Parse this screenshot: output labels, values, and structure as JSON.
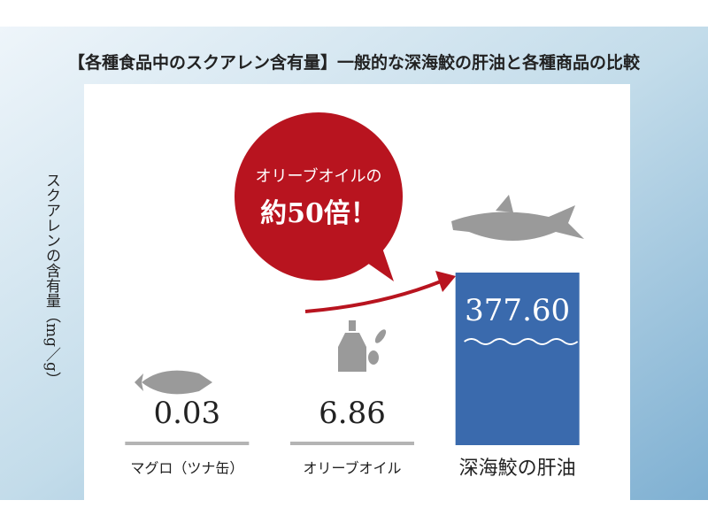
{
  "chart_data": {
    "type": "bar",
    "title": "【各種食品中のスクアレン含有量】一般的な深海鮫の肝油と各種商品の比較",
    "ylabel": "スクアレンの含有量（mg／g）",
    "categories": [
      "マグロ（ツナ缶）",
      "オリーブオイル",
      "深海鮫の肝油"
    ],
    "values": [
      0.03,
      6.86,
      377.6
    ],
    "value_labels": [
      "0.03",
      "6.86",
      "377.60"
    ],
    "colors": [
      "#b4b4b4",
      "#b4b4b4",
      "#3a6aad"
    ],
    "annotations": [
      "オリーブオイルの",
      "約50倍！"
    ]
  }
}
